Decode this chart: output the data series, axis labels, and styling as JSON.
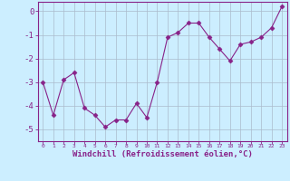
{
  "x": [
    0,
    1,
    2,
    3,
    4,
    5,
    6,
    7,
    8,
    9,
    10,
    11,
    12,
    13,
    14,
    15,
    16,
    17,
    18,
    19,
    20,
    21,
    22,
    23
  ],
  "y": [
    -3.0,
    -4.4,
    -2.9,
    -2.6,
    -4.1,
    -4.4,
    -4.9,
    -4.6,
    -4.6,
    -3.9,
    -4.5,
    -3.0,
    -1.1,
    -0.9,
    -0.5,
    -0.5,
    -1.1,
    -1.6,
    -2.1,
    -1.4,
    -1.3,
    -1.1,
    -0.7,
    0.2
  ],
  "line_color": "#882288",
  "marker": "D",
  "marker_size": 2.5,
  "xlabel": "Windchill (Refroidissement éolien,°C)",
  "xlabel_fontsize": 6.5,
  "bg_color": "#cceeff",
  "grid_color": "#aabbcc",
  "axis_color": "#882288",
  "ylim": [
    -5.5,
    0.4
  ],
  "yticks": [
    0,
    -1,
    -2,
    -3,
    -4,
    -5
  ],
  "xlim": [
    -0.5,
    23.5
  ],
  "xticks": [
    0,
    1,
    2,
    3,
    4,
    5,
    6,
    7,
    8,
    9,
    10,
    11,
    12,
    13,
    14,
    15,
    16,
    17,
    18,
    19,
    20,
    21,
    22,
    23
  ]
}
